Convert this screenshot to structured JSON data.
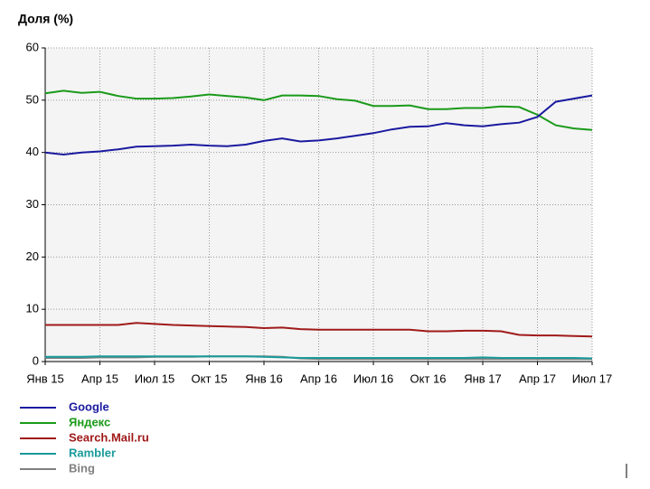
{
  "chart_data": {
    "type": "line",
    "title": "Доля (%)",
    "categories": [
      "Янв 15",
      null,
      null,
      "Апр 15",
      null,
      null,
      "Июл 15",
      null,
      null,
      "Окт 15",
      null,
      null,
      "Янв 16",
      null,
      null,
      "Апр 16",
      null,
      null,
      "Июл 16",
      null,
      null,
      "Окт 16",
      null,
      null,
      "Янв 17",
      null,
      null,
      "Апр 17",
      null,
      null,
      "Июл 17"
    ],
    "series": [
      {
        "name": "Google",
        "color": "#1a1aa0",
        "values": [
          40,
          39.6,
          40,
          40.2,
          40.6,
          41.1,
          41.2,
          41.3,
          41.5,
          41.3,
          41.2,
          41.5,
          42.2,
          42.7,
          42.1,
          42.3,
          42.7,
          43.2,
          43.7,
          44.4,
          44.9,
          45,
          45.6,
          45.2,
          45,
          45.4,
          45.7,
          46.8,
          49.7,
          50.3,
          50.9
        ]
      },
      {
        "name": "Яндекс",
        "color": "#1a9a1a",
        "values": [
          51.3,
          51.8,
          51.4,
          51.6,
          50.8,
          50.3,
          50.3,
          50.4,
          50.7,
          51.1,
          50.8,
          50.5,
          50,
          50.9,
          50.9,
          50.8,
          50.2,
          49.9,
          48.9,
          48.9,
          49,
          48.3,
          48.3,
          48.5,
          48.5,
          48.8,
          48.7,
          47.2,
          45.2,
          44.6,
          44.3
        ]
      },
      {
        "name": "Search.Mail.ru",
        "color": "#a01a1a",
        "values": [
          7,
          7,
          7,
          7,
          7,
          7.4,
          7.2,
          7,
          6.9,
          6.8,
          6.7,
          6.6,
          6.4,
          6.5,
          6.2,
          6.1,
          6.1,
          6.1,
          6.1,
          6.1,
          6.1,
          5.8,
          5.8,
          5.9,
          5.9,
          5.8,
          5.1,
          5,
          5,
          4.9,
          4.8
        ]
      },
      {
        "name": "Rambler",
        "color": "#1a9a9a",
        "values": [
          0.9,
          0.9,
          0.9,
          1,
          1,
          1,
          1,
          1,
          1,
          1,
          1,
          1,
          0.9,
          0.8,
          0.7,
          0.7,
          0.7,
          0.7,
          0.7,
          0.7,
          0.7,
          0.7,
          0.7,
          0.7,
          0.8,
          0.7,
          0.7,
          0.7,
          0.7,
          0.7,
          0.6
        ]
      },
      {
        "name": "Bing",
        "color": "#808080",
        "values": [
          0.7,
          0.7,
          0.7,
          0.8,
          0.8,
          0.8,
          0.9,
          0.9,
          0.9,
          1,
          1,
          1,
          1,
          0.9,
          0.6,
          0.5,
          0.5,
          0.5,
          0.5,
          0.5,
          0.5,
          0.5,
          0.5,
          0.5,
          0.5,
          0.5,
          0.5,
          0.5,
          0.5,
          0.5,
          0.5
        ]
      }
    ],
    "ylim": [
      0,
      60
    ],
    "yticks": [
      0,
      10,
      20,
      30,
      40,
      50,
      60
    ],
    "grid": true
  }
}
